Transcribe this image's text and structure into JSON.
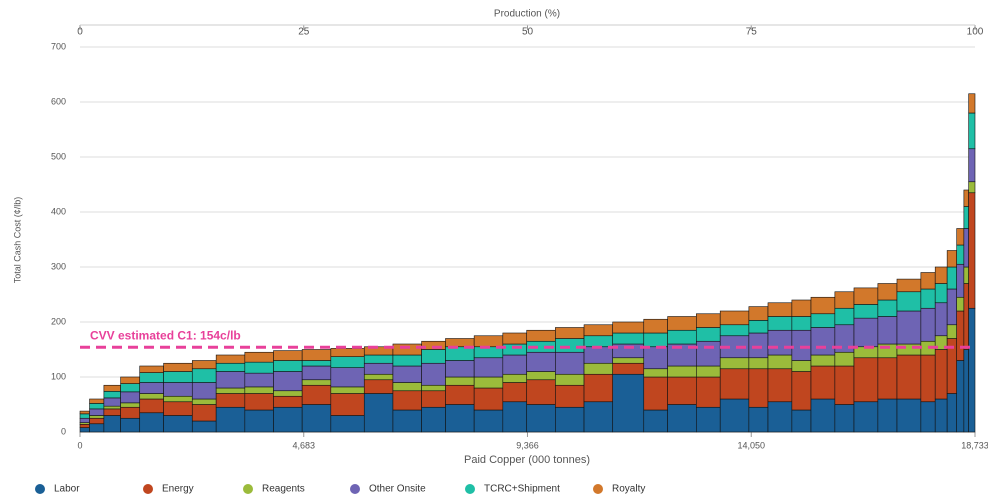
{
  "chart_data": {
    "type": "cost_curve",
    "x2label": "Production (%)",
    "xlabel": "Paid Copper (000 tonnes)",
    "ylabel": "Total Cash Cost (¢/lb)",
    "xlim": [
      0,
      18733
    ],
    "xticks": [
      0,
      {
        "value": 4683,
        "label": "4,683"
      },
      {
        "value": 9366,
        "label": "9,366"
      },
      {
        "value": 14050,
        "label": "14,050"
      },
      {
        "value": 18733,
        "label": "18,733"
      }
    ],
    "x2lim": [
      0,
      100
    ],
    "x2ticks": [
      0,
      25,
      50,
      75,
      100
    ],
    "ylim": [
      0,
      700
    ],
    "yticks": [
      0,
      100,
      200,
      300,
      400,
      500,
      600,
      700
    ],
    "grid": true,
    "widths": [
      200,
      300,
      350,
      400,
      500,
      600,
      500,
      600,
      600,
      600,
      600,
      700,
      600,
      600,
      500,
      600,
      600,
      500,
      600,
      600,
      600,
      650,
      500,
      600,
      500,
      600,
      400,
      500,
      400,
      500,
      400,
      500,
      400,
      500,
      300,
      250,
      200,
      150,
      100,
      133
    ],
    "series": [
      {
        "name": "Labor",
        "color": "#1a5f96",
        "values": [
          8,
          15,
          30,
          25,
          35,
          30,
          20,
          45,
          40,
          45,
          50,
          30,
          70,
          40,
          45,
          50,
          40,
          55,
          50,
          45,
          55,
          105,
          40,
          50,
          45,
          60,
          45,
          55,
          40,
          60,
          50,
          55,
          60,
          60,
          55,
          60,
          70,
          130,
          150,
          225
        ]
      },
      {
        "name": "Energy",
        "color": "#c0461f",
        "values": [
          6,
          10,
          12,
          20,
          25,
          25,
          30,
          25,
          30,
          20,
          35,
          40,
          25,
          35,
          30,
          35,
          40,
          35,
          45,
          40,
          50,
          20,
          60,
          50,
          55,
          55,
          70,
          60,
          70,
          60,
          70,
          80,
          75,
          80,
          85,
          90,
          100,
          90,
          120,
          210
        ]
      },
      {
        "name": "Reagents",
        "color": "#9bbb3b",
        "values": [
          3,
          5,
          5,
          8,
          10,
          10,
          10,
          10,
          12,
          10,
          10,
          12,
          10,
          15,
          10,
          15,
          20,
          15,
          15,
          20,
          20,
          10,
          15,
          20,
          20,
          20,
          20,
          25,
          20,
          20,
          25,
          20,
          25,
          20,
          25,
          25,
          25,
          25,
          30,
          20
        ]
      },
      {
        "name": "Other Onsite",
        "color": "#6e64b4",
        "values": [
          8,
          12,
          15,
          20,
          20,
          25,
          30,
          30,
          25,
          35,
          25,
          35,
          20,
          30,
          40,
          30,
          35,
          35,
          35,
          40,
          30,
          25,
          40,
          40,
          45,
          40,
          45,
          45,
          55,
          50,
          50,
          52,
          50,
          60,
          60,
          60,
          65,
          60,
          70,
          60
        ]
      },
      {
        "name": "TCRC+Shipment",
        "color": "#1fbfa6",
        "values": [
          8,
          10,
          12,
          15,
          18,
          20,
          25,
          15,
          20,
          20,
          10,
          20,
          15,
          20,
          25,
          25,
          20,
          20,
          20,
          25,
          20,
          20,
          25,
          25,
          25,
          20,
          23,
          25,
          25,
          25,
          30,
          25,
          30,
          35,
          35,
          35,
          40,
          35,
          40,
          65
        ]
      },
      {
        "name": "Royalty",
        "color": "#d2782b",
        "values": [
          5,
          8,
          11,
          12,
          12,
          15,
          15,
          15,
          18,
          18,
          20,
          15,
          15,
          20,
          15,
          15,
          20,
          20,
          20,
          20,
          20,
          20,
          25,
          25,
          25,
          25,
          25,
          25,
          30,
          30,
          30,
          30,
          30,
          23,
          30,
          30,
          30,
          30,
          30,
          35
        ]
      }
    ],
    "reference_line": {
      "value": 154,
      "label": "CVV estimated C1: 154c/lb",
      "color": "#e8409a"
    },
    "legend": "bottom-left"
  }
}
